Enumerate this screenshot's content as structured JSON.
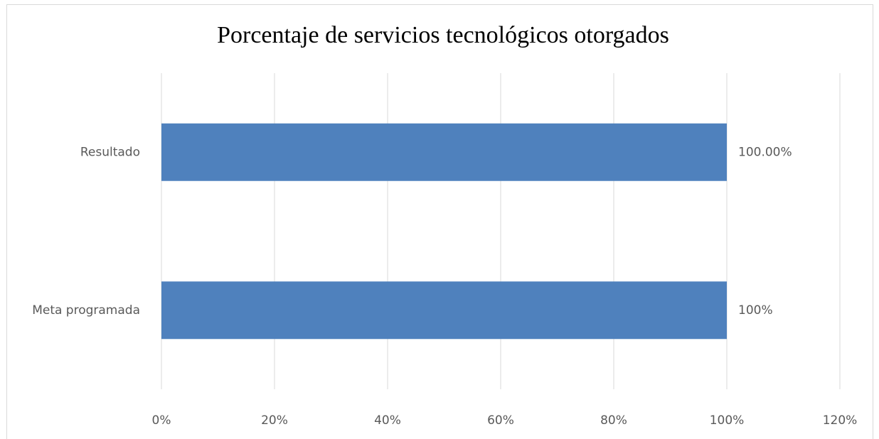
{
  "chart_data": {
    "type": "bar",
    "orientation": "horizontal",
    "title": "Porcentaje de servicios tecnológicos otorgados",
    "categories": [
      "Resultado",
      "Meta programada"
    ],
    "values": [
      100,
      100
    ],
    "value_labels": [
      "100.00%",
      "100%"
    ],
    "color": "#4f81bd",
    "xlim": [
      0,
      120
    ],
    "xticks": [
      {
        "value": 0,
        "label": "0%"
      },
      {
        "value": 20,
        "label": "20%"
      },
      {
        "value": 40,
        "label": "40%"
      },
      {
        "value": 60,
        "label": "60%"
      },
      {
        "value": 80,
        "label": "80%"
      },
      {
        "value": 100,
        "label": "100%"
      },
      {
        "value": 120,
        "label": "120%"
      }
    ],
    "grid": true
  }
}
